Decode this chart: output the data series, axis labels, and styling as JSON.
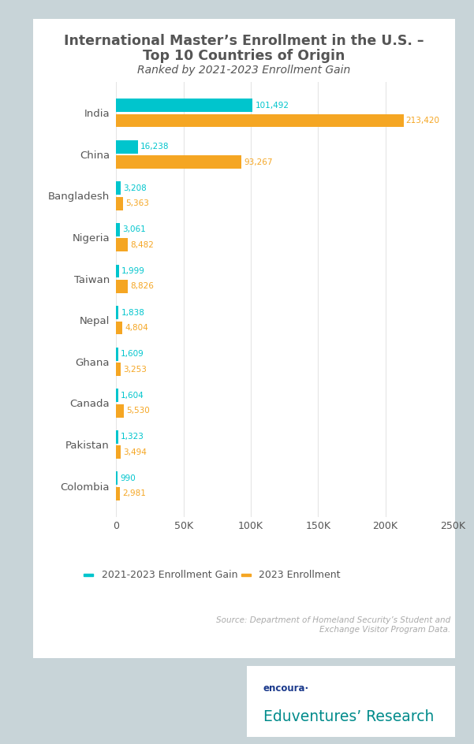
{
  "title_line1": "International Master’s Enrollment in the U.S. –",
  "title_line2": "Top 10 Countries of Origin",
  "subtitle": "Ranked by 2021-2023 Enrollment Gain",
  "countries": [
    "India",
    "China",
    "Bangladesh",
    "Nigeria",
    "Taiwan",
    "Nepal",
    "Ghana",
    "Canada",
    "Pakistan",
    "Colombia"
  ],
  "gain_2021_2023": [
    101492,
    16238,
    3208,
    3061,
    1999,
    1838,
    1609,
    1604,
    1323,
    990
  ],
  "enrollment_2023": [
    213420,
    93267,
    5363,
    8482,
    8826,
    4804,
    3253,
    5530,
    3494,
    2981
  ],
  "gain_color": "#00C5CD",
  "enrollment_color": "#F5A623",
  "background_outer": "#C8D4D8",
  "background_chart": "#FFFFFF",
  "text_color_dark": "#555555",
  "text_color_gain": "#00C5CD",
  "text_color_enrollment": "#F5A623",
  "legend_gain_label": "2021-2023 Enrollment Gain",
  "legend_enrollment_label": "2023 Enrollment",
  "source_text": "Source: Department of Homeland Security’s Student and\nExchange Visitor Program Data.",
  "xlim": [
    0,
    250000
  ],
  "xticks": [
    0,
    50000,
    100000,
    150000,
    200000,
    250000
  ],
  "xtick_labels": [
    "0",
    "50K",
    "100K",
    "150K",
    "200K",
    "250K"
  ],
  "bar_height": 0.32,
  "logo_text_encoura": "encoura·",
  "logo_text_edu": "Eduventures’ Research",
  "logo_color_encoura": "#1B3A8C",
  "logo_color_edu": "#008B8B"
}
